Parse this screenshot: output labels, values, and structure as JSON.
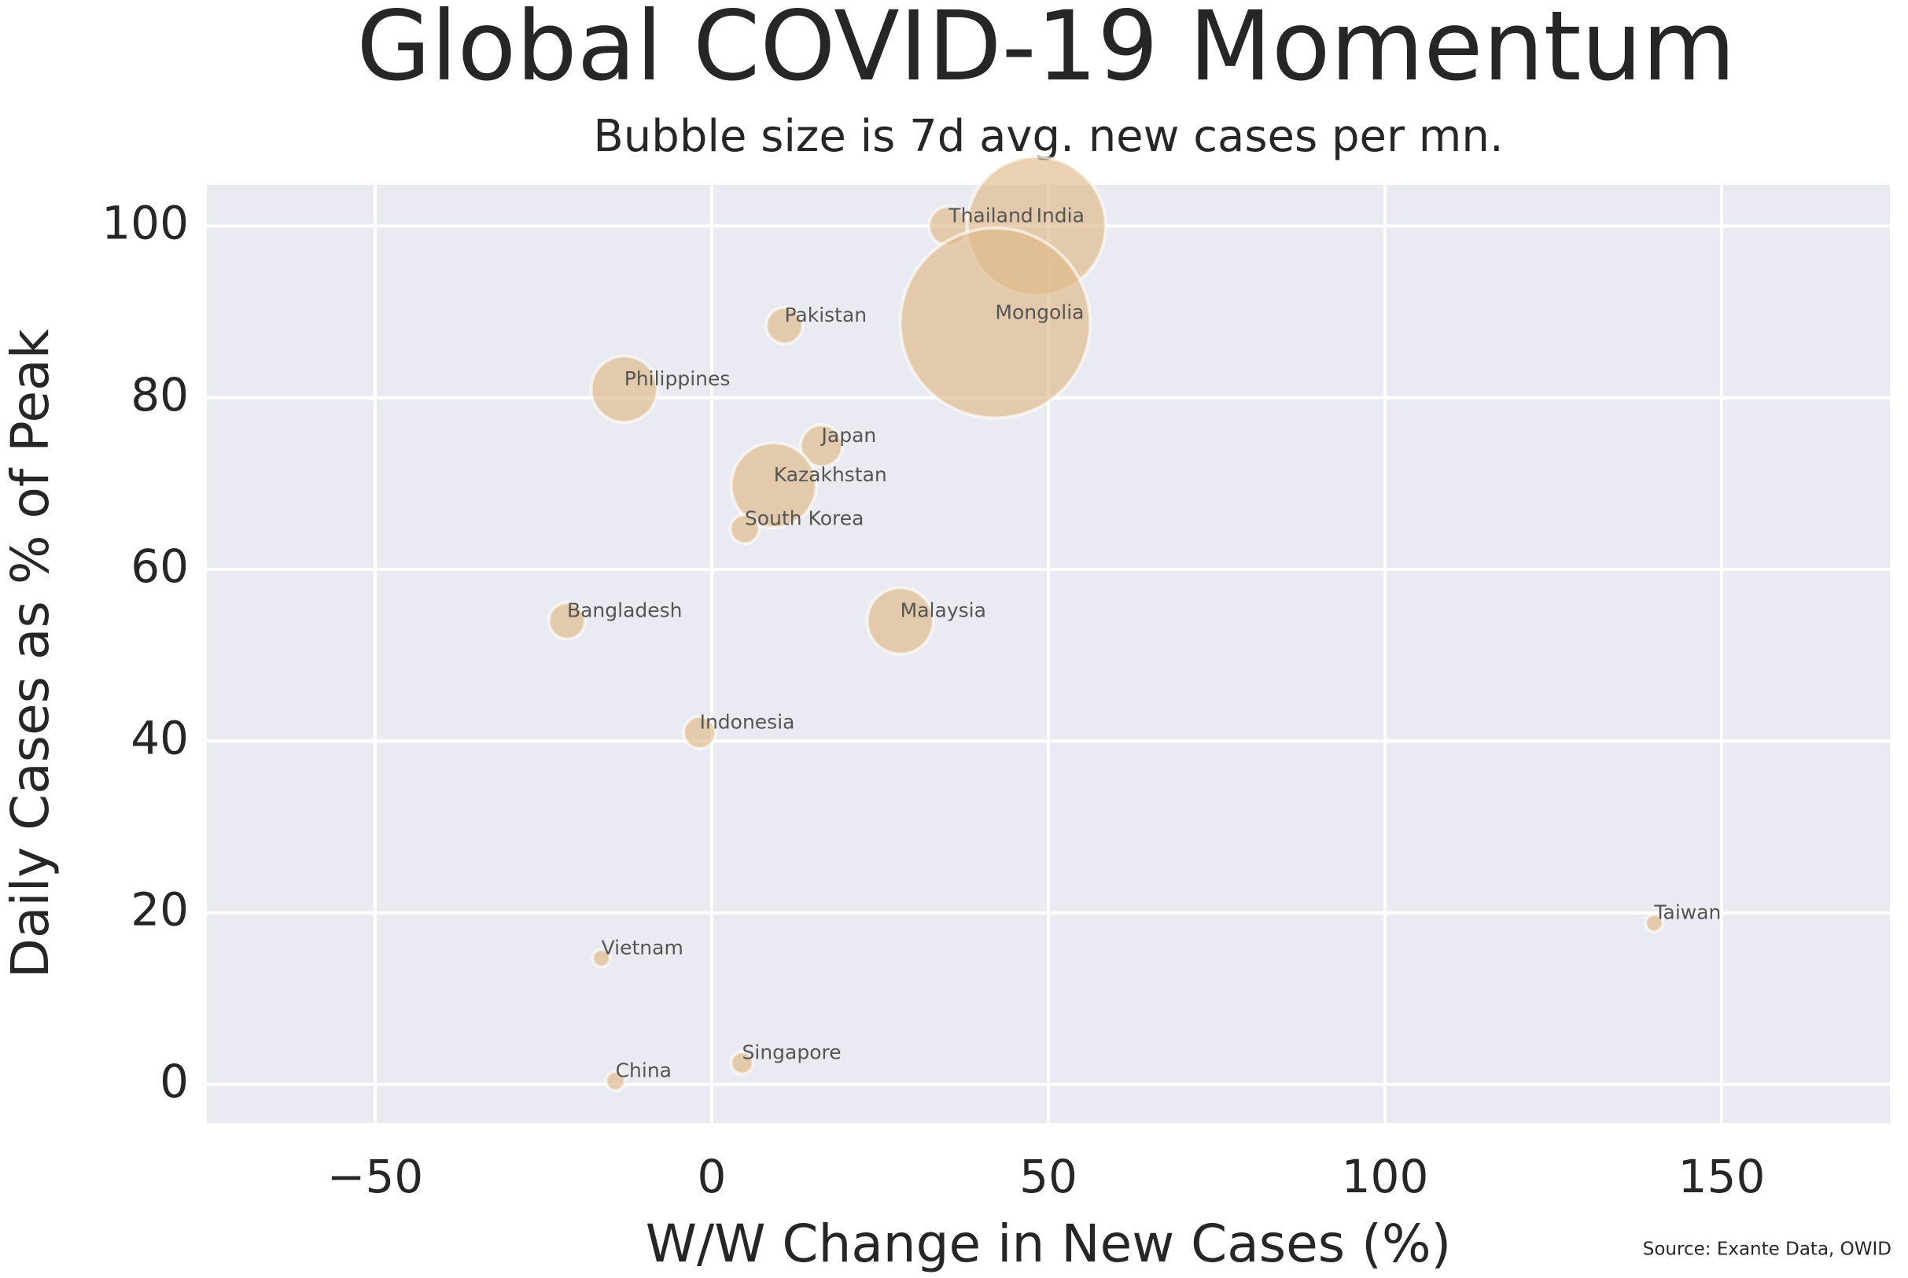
{
  "chart_data": {
    "type": "bubble",
    "title": "Global COVID-19 Momentum",
    "subtitle": "Bubble size is 7d avg. new cases per mn.",
    "x_label": "W/W Change in New Cases (%)",
    "y_label": "Daily Cases as % of Peak",
    "source": "Source: Exante Data, OWID",
    "labels": [
      "Thailand",
      "India",
      "Pakistan",
      "Mongolia",
      "Philippines",
      "Japan",
      "Kazakhstan",
      "South Korea",
      "Bangladesh",
      "Malaysia",
      "Indonesia",
      "Taiwan",
      "Vietnam",
      "Singapore",
      "China"
    ],
    "x": [
      35.2,
      48.2,
      10.8,
      42.1,
      -13,
      16.3,
      9.2,
      4.9,
      -21.5,
      28,
      -1.8,
      140,
      -16.4,
      4.5,
      -14.3
    ],
    "values": [
      100,
      100,
      88.4,
      88.7,
      81,
      74.4,
      69.8,
      64.7,
      54,
      54,
      41,
      18.8,
      14.7,
      2.5,
      0.4
    ],
    "sizes": [
      26,
      320,
      22,
      600,
      73,
      29,
      120,
      14,
      22,
      73,
      17,
      5,
      5,
      8,
      6
    ],
    "color": "#deb887",
    "xlim": [
      -75,
      175
    ],
    "ylim": [
      -4.5,
      104.8
    ],
    "xticks": [
      {
        "value": -50,
        "label": "−50"
      },
      0,
      50,
      100,
      150
    ],
    "yticks": [
      0,
      20,
      40,
      60,
      80,
      100
    ],
    "grid": true
  }
}
